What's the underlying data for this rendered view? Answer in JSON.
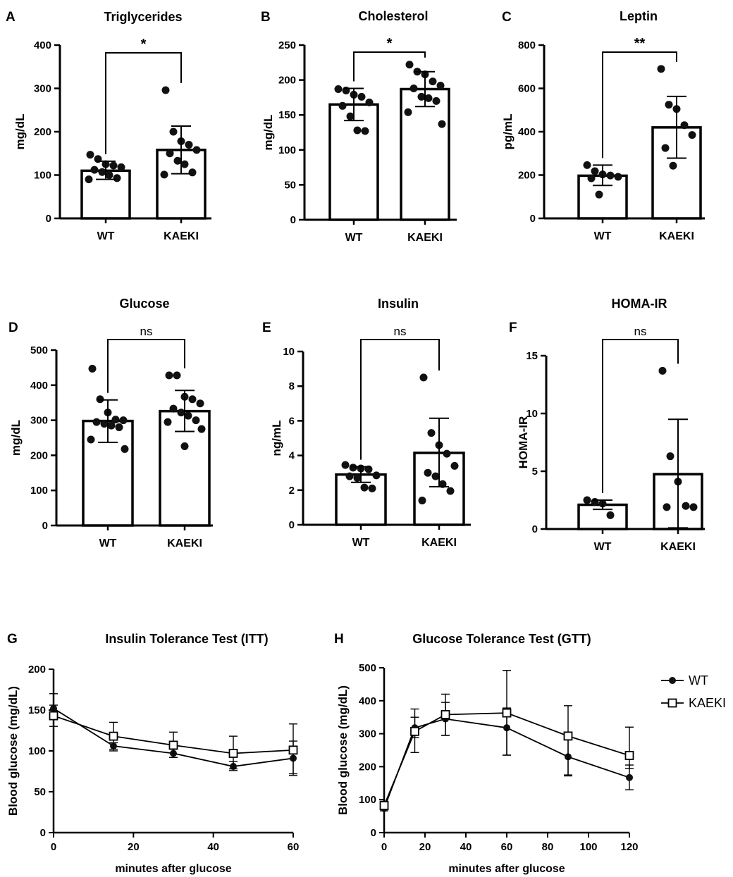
{
  "chart_data": [
    {
      "type": "bar",
      "panel": "A",
      "title": "Triglycerides",
      "ylabel": "mg/dL",
      "ylim": [
        0,
        400
      ],
      "yticks": [
        0,
        100,
        200,
        300,
        400
      ],
      "categories": [
        "WT",
        "KAEKI"
      ],
      "values": [
        110,
        158
      ],
      "errors": [
        [
          90,
          132
        ],
        [
          103,
          213
        ]
      ],
      "points": [
        [
          147,
          137,
          125,
          122,
          118,
          112,
          107,
          100,
          93,
          90
        ],
        [
          296,
          200,
          178,
          170,
          158,
          150,
          133,
          125,
          106,
          101
        ]
      ],
      "significance": "*"
    },
    {
      "type": "bar",
      "panel": "B",
      "title": "Cholesterol",
      "ylabel": "mg/dL",
      "ylim": [
        0,
        250
      ],
      "yticks": [
        0,
        50,
        100,
        150,
        200,
        250
      ],
      "categories": [
        "WT",
        "KAEKI"
      ],
      "values": [
        165,
        187
      ],
      "errors": [
        [
          142,
          188
        ],
        [
          162,
          212
        ]
      ],
      "points": [
        [
          187,
          185,
          179,
          176,
          168,
          163,
          148,
          128,
          127
        ],
        [
          222,
          212,
          208,
          198,
          192,
          188,
          176,
          174,
          170,
          154,
          137
        ]
      ],
      "significance": "*"
    },
    {
      "type": "bar",
      "panel": "C",
      "title": "Leptin",
      "ylabel": "pg/mL",
      "ylim": [
        0,
        800
      ],
      "yticks": [
        0,
        200,
        400,
        600,
        800
      ],
      "categories": [
        "WT",
        "KAEKI"
      ],
      "values": [
        197,
        420
      ],
      "errors": [
        [
          152,
          246
        ],
        [
          278,
          563
        ]
      ],
      "points": [
        [
          246,
          218,
          203,
          198,
          192,
          185,
          110
        ],
        [
          690,
          525,
          505,
          430,
          385,
          325,
          243
        ]
      ],
      "significance": "**"
    },
    {
      "type": "bar",
      "panel": "D",
      "title": "Glucose",
      "ylabel": "mg/dL",
      "ylim": [
        0,
        500
      ],
      "yticks": [
        0,
        100,
        200,
        300,
        400,
        500
      ],
      "categories": [
        "WT",
        "KAEKI"
      ],
      "values": [
        298,
        326
      ],
      "errors": [
        [
          237,
          358
        ],
        [
          268,
          385
        ]
      ],
      "points": [
        [
          447,
          360,
          322,
          302,
          300,
          295,
          290,
          285,
          280,
          245,
          218
        ],
        [
          428,
          428,
          367,
          360,
          348,
          333,
          322,
          313,
          300,
          295,
          275,
          226
        ]
      ],
      "significance": "ns"
    },
    {
      "type": "bar",
      "panel": "E",
      "title": "Insulin",
      "ylabel": "ng/mL",
      "ylim": [
        0,
        10
      ],
      "yticks": [
        0,
        2,
        4,
        6,
        8,
        10
      ],
      "categories": [
        "WT",
        "KAEKI"
      ],
      "values": [
        2.9,
        4.15
      ],
      "errors": [
        [
          2.45,
          3.35
        ],
        [
          2.2,
          6.15
        ]
      ],
      "points": [
        [
          3.45,
          3.3,
          3.25,
          3.2,
          2.85,
          2.8,
          2.7,
          2.15,
          2.1
        ],
        [
          8.5,
          5.3,
          4.6,
          4.1,
          3.4,
          3.0,
          2.8,
          2.35,
          1.95,
          1.4
        ]
      ],
      "significance": "ns"
    },
    {
      "type": "bar",
      "panel": "F",
      "title": "HOMA-IR",
      "ylabel": "HOMA-IR",
      "ylim": [
        0,
        15
      ],
      "yticks": [
        0,
        5,
        10,
        15
      ],
      "categories": [
        "WT",
        "KAEKI"
      ],
      "values": [
        2.1,
        4.75
      ],
      "errors": [
        [
          1.7,
          2.5
        ],
        [
          0.1,
          9.5
        ]
      ],
      "points": [
        [
          2.5,
          2.35,
          2.2,
          1.2
        ],
        [
          13.7,
          6.3,
          4.1,
          2.0,
          1.9,
          1.9
        ]
      ],
      "significance": "ns"
    },
    {
      "type": "line",
      "panel": "G",
      "title": "Insulin Tolerance Test (ITT)",
      "xlabel": "minutes after glucose",
      "ylabel": "Blood glucose (mg/dL)",
      "xlim": [
        0,
        60
      ],
      "ylim": [
        0,
        200
      ],
      "xticks": [
        0,
        20,
        40,
        60
      ],
      "yticks": [
        0,
        50,
        100,
        150,
        200
      ],
      "x": [
        0,
        15,
        30,
        45,
        60
      ],
      "series": [
        {
          "name": "WT",
          "marker": "circle",
          "values": [
            152,
            106,
            97,
            81,
            91
          ],
          "err": [
            [
              148,
              156
            ],
            [
              102,
              110
            ],
            [
              92,
              102
            ],
            [
              76,
              87
            ],
            [
              70,
              112
            ]
          ]
        },
        {
          "name": "KAEKI",
          "marker": "square",
          "values": [
            143,
            118,
            107,
            97,
            101
          ],
          "err": [
            [
              130,
              170
            ],
            [
              100,
              135
            ],
            [
              92,
              123
            ],
            [
              78,
              118
            ],
            [
              72,
              133
            ]
          ]
        }
      ]
    },
    {
      "type": "line",
      "panel": "H",
      "title": "Glucose Tolerance Test (GTT)",
      "xlabel": "minutes after glucose",
      "ylabel": "Blood glucose (mg/dL)",
      "xlim": [
        0,
        120
      ],
      "ylim": [
        0,
        500
      ],
      "xticks": [
        0,
        20,
        40,
        60,
        80,
        100,
        120
      ],
      "yticks": [
        0,
        100,
        200,
        300,
        400,
        500
      ],
      "x": [
        0,
        15,
        30,
        60,
        90,
        120
      ],
      "series": [
        {
          "name": "WT",
          "marker": "circle",
          "values": [
            73,
            318,
            345,
            318,
            230,
            167
          ],
          "err": [
            [
              66,
              80
            ],
            [
              288,
              350
            ],
            [
              295,
              395
            ],
            [
              235,
              378
            ],
            [
              172,
              290
            ],
            [
              130,
              205
            ]
          ]
        },
        {
          "name": "KAEKI",
          "marker": "square",
          "values": [
            82,
            307,
            358,
            363,
            293,
            234
          ],
          "err": [
            [
              70,
              95
            ],
            [
              243,
              375
            ],
            [
              295,
              420
            ],
            [
              235,
              492
            ],
            [
              175,
              385
            ],
            [
              195,
              320
            ]
          ]
        }
      ]
    }
  ],
  "legend": [
    {
      "name": "WT",
      "marker": "circle"
    },
    {
      "name": "KAEKI",
      "marker": "square"
    }
  ]
}
